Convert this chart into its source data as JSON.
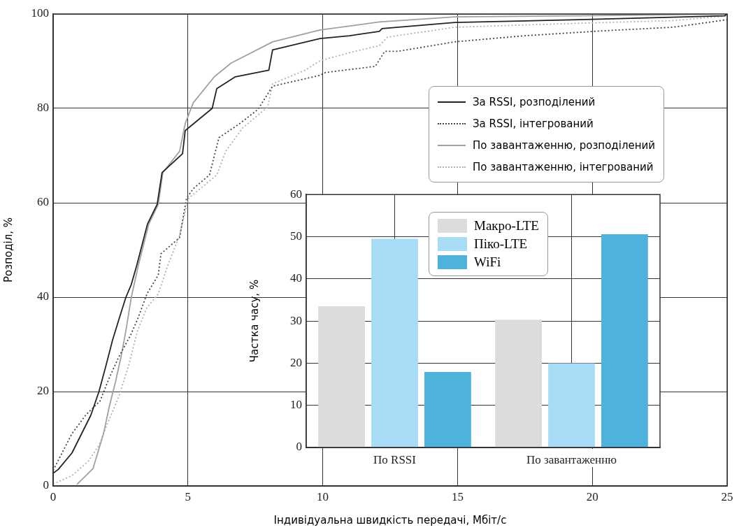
{
  "chart_data": [
    {
      "type": "line",
      "xlabel": "Індивідуальна швидкість передачі, Мбіт/с",
      "ylabel": "Розподіл, %",
      "xlim": [
        0,
        25
      ],
      "xticks": [
        0,
        5,
        10,
        15,
        20,
        25
      ],
      "ylim": [
        0,
        100
      ],
      "yticks": [
        0,
        20,
        40,
        60,
        80,
        100
      ],
      "grid": true,
      "legend": "top right",
      "marker": "none",
      "series": [
        {
          "name": "За RSSI, розподілений",
          "color": "#222222",
          "line_style": "solid",
          "x": [
            0,
            0.19,
            0.7,
            1.4,
            1.7,
            1.96,
            2.2,
            2.44,
            2.7,
            2.9,
            3.1,
            3.5,
            3.86,
            4.04,
            4.8,
            4.9,
            5.9,
            6.07,
            6.76,
            8.0,
            8.14,
            9.9,
            11.0,
            12.1,
            12.2,
            14.9,
            19.5,
            24.9,
            25
          ],
          "values": [
            2.7,
            3.5,
            7,
            15,
            20,
            25.5,
            30.8,
            35.3,
            40,
            42.7,
            46.7,
            55.5,
            59.7,
            66.4,
            70.4,
            75.3,
            80,
            84.2,
            86.7,
            88.1,
            92.4,
            94.8,
            95.4,
            96.3,
            96.9,
            98.2,
            98.8,
            99.6,
            100
          ]
        },
        {
          "name": "За RSSI, інтегрований",
          "color": "#444444",
          "line_style": "dotted",
          "x": [
            0,
            0.7,
            1.22,
            1.74,
            2.09,
            2.44,
            2.87,
            3.13,
            3.48,
            3.9,
            4.0,
            4.69,
            4.95,
            5.2,
            5.8,
            6.15,
            6.93,
            7.6,
            8.14,
            9.9,
            10.1,
            11.95,
            12.3,
            12.8,
            14.9,
            17.5,
            20.3,
            23.0,
            24.4,
            25
          ],
          "values": [
            3.3,
            11.1,
            15.1,
            18,
            23,
            27.4,
            31.9,
            35.3,
            40.7,
            44.7,
            49.2,
            52.6,
            61,
            63,
            65.9,
            73.8,
            76.8,
            79.8,
            84.7,
            87,
            87.6,
            88.9,
            92.1,
            92.1,
            94.1,
            95.4,
            96.4,
            97.2,
            98.3,
            98.8
          ]
        },
        {
          "name": "По завантаженню, розподілений",
          "color": "#a0a0a0",
          "line_style": "solid",
          "x": [
            0.88,
            1.48,
            1.87,
            2.09,
            2.31,
            2.52,
            2.7,
            2.9,
            3.16,
            3.55,
            3.9,
            4.07,
            4.69,
            4.9,
            5.2,
            5.98,
            6.6,
            8.14,
            9.9,
            12.1,
            14.9,
            19.5,
            25
          ],
          "values": [
            0.3,
            3.7,
            11.1,
            17,
            22,
            27.4,
            32.9,
            40,
            46.7,
            55.5,
            59.7,
            66.4,
            70.9,
            76.8,
            81.2,
            86.7,
            89.6,
            94.1,
            96.6,
            98.3,
            99.4,
            99.6,
            100
          ]
        },
        {
          "name": "По завантаженню, інтегрований",
          "color": "#b0b0b0",
          "line_style": "dotted",
          "x": [
            0,
            0.7,
            1.3,
            1.7,
            2.0,
            2.44,
            2.8,
            3.13,
            3.48,
            3.9,
            4.25,
            4.69,
            4.85,
            5.03,
            5.46,
            6.07,
            6.4,
            7.02,
            7.96,
            8.14,
            9.35,
            9.9,
            11.07,
            12.1,
            12.4,
            14.9,
            19.3,
            23.0,
            25
          ],
          "values": [
            0.4,
            2.2,
            5.2,
            8.6,
            13,
            19,
            25.5,
            32.9,
            37.8,
            40.7,
            46.7,
            53.1,
            57,
            61,
            63,
            65.9,
            70.9,
            75.8,
            80.3,
            85.2,
            88.1,
            90.1,
            91.9,
            93.3,
            95.1,
            97.2,
            98,
            98.6,
            99.6
          ]
        }
      ]
    },
    {
      "type": "bar",
      "categories": [
        "По RSSI",
        "По завантаженню"
      ],
      "ylabel": "Частка часу, %",
      "ylim": [
        0,
        60
      ],
      "yticks": [
        0,
        10,
        20,
        30,
        40,
        50,
        60
      ],
      "grid": true,
      "legend": "top",
      "series": [
        {
          "name": "Макро-LTE",
          "color": "#dcdcdc",
          "values": [
            33.5,
            30.3
          ]
        },
        {
          "name": "Піко-LTE",
          "color": "#a8dbf5",
          "values": [
            49.5,
            20
          ]
        },
        {
          "name": "WiFi",
          "color": "#4eb3dc",
          "values": [
            17.9,
            50.6
          ]
        }
      ]
    }
  ]
}
